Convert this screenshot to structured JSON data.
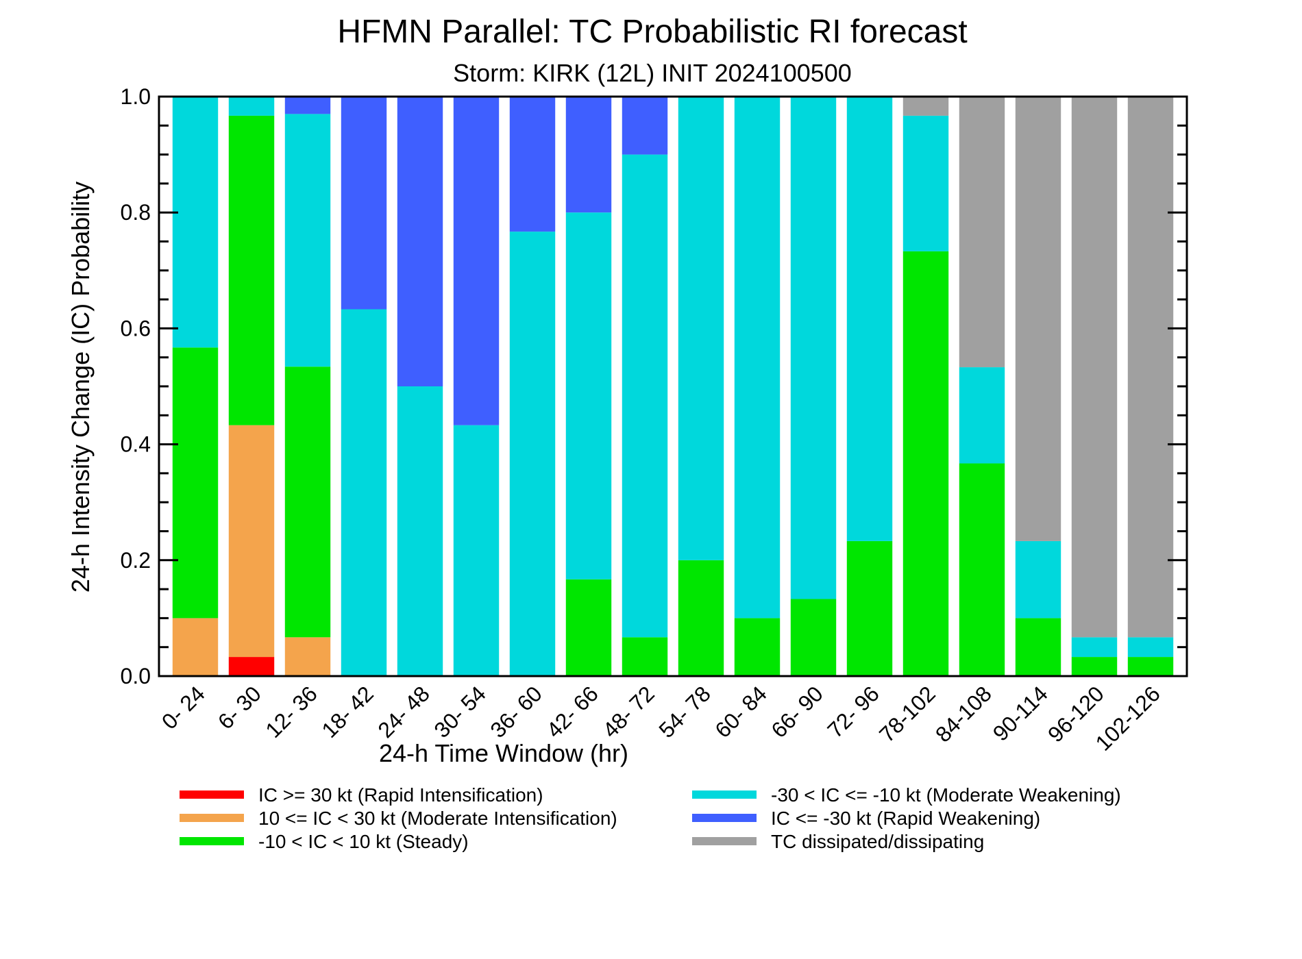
{
  "chart_data": {
    "type": "bar",
    "stacked": true,
    "title": "HFMN Parallel: TC Probabilistic RI forecast",
    "subtitle": "Storm: KIRK (12L) INIT 2024100500",
    "xlabel": "24-h Time Window (hr)",
    "ylabel": "24-h Intensity Change (IC) Probability",
    "ylim": [
      0,
      1
    ],
    "yticks": [
      "0.0",
      "0.2",
      "0.4",
      "0.6",
      "0.8",
      "1.0"
    ],
    "categories": [
      "0- 24",
      "6- 30",
      "12- 36",
      "18- 42",
      "24- 48",
      "30- 54",
      "36- 60",
      "42- 66",
      "48- 72",
      "54- 78",
      "60- 84",
      "66- 90",
      "72- 96",
      "78-102",
      "84-108",
      "90-114",
      "96-120",
      "102-126"
    ],
    "series": [
      {
        "name": "IC >= 30 kt (Rapid Intensification)",
        "color": "#ff0000",
        "values": [
          0,
          0.033,
          0,
          0,
          0,
          0,
          0,
          0,
          0,
          0,
          0,
          0,
          0,
          0,
          0,
          0,
          0,
          0
        ]
      },
      {
        "name": "10 <= IC < 30 kt (Moderate Intensification)",
        "color": "#f4a44c",
        "values": [
          0.1,
          0.4,
          0.067,
          0,
          0,
          0,
          0,
          0,
          0,
          0,
          0,
          0,
          0,
          0,
          0,
          0,
          0,
          0
        ]
      },
      {
        "name": "-10 < IC < 10 kt (Steady)",
        "color": "#00e600",
        "values": [
          0.467,
          0.534,
          0.467,
          0,
          0,
          0,
          0,
          0.167,
          0.067,
          0.2,
          0.1,
          0.133,
          0.233,
          0.733,
          0.367,
          0.1,
          0.033,
          0.033
        ]
      },
      {
        "name": "-30 < IC <= -10 kt (Moderate Weakening)",
        "color": "#00d8dc",
        "values": [
          0.433,
          0.033,
          0.436,
          0.633,
          0.5,
          0.433,
          0.767,
          0.633,
          0.833,
          0.8,
          0.9,
          0.867,
          0.767,
          0.234,
          0.166,
          0.133,
          0.034,
          0.034
        ]
      },
      {
        "name": "IC <= -30 kt (Rapid Weakening)",
        "color": "#3f5fff",
        "values": [
          0,
          0,
          0.03,
          0.367,
          0.5,
          0.567,
          0.233,
          0.2,
          0.1,
          0,
          0,
          0,
          0,
          0,
          0,
          0,
          0,
          0
        ]
      },
      {
        "name": "TC dissipated/dissipating",
        "color": "#a0a0a0",
        "values": [
          0,
          0,
          0,
          0,
          0,
          0,
          0,
          0,
          0,
          0,
          0,
          0,
          0,
          0.033,
          0.467,
          0.767,
          0.933,
          0.933
        ]
      }
    ],
    "legend_position": "bottom",
    "grid": false
  }
}
